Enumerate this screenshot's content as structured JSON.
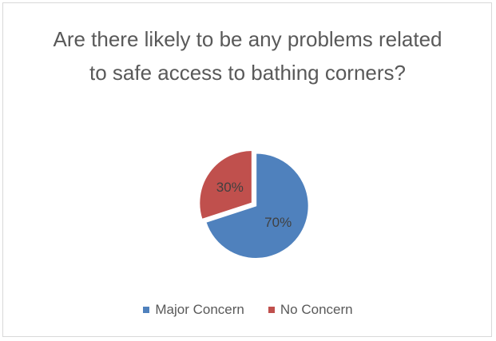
{
  "chart_data": {
    "type": "pie",
    "title": "Are there likely to be any problems related to safe access to bathing corners?",
    "categories": [
      "Major Concern",
      "No Concern"
    ],
    "values": [
      70,
      30
    ],
    "data_labels": [
      "70%",
      "30%"
    ],
    "colors": [
      "#4f81bd",
      "#c0504d"
    ],
    "legend_position": "bottom"
  },
  "legend": {
    "items": [
      {
        "label": "Major Concern",
        "color": "#4f81bd"
      },
      {
        "label": "No Concern",
        "color": "#c0504d"
      }
    ]
  }
}
